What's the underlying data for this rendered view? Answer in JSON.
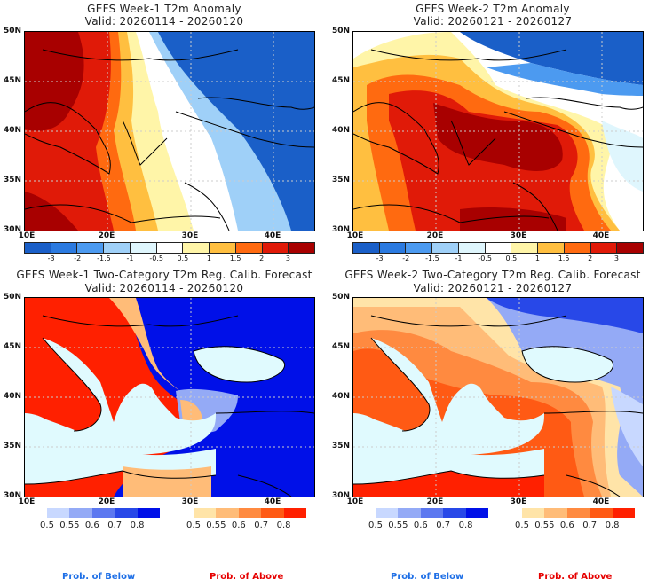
{
  "panels": [
    {
      "title": "GEFS Week-1 T2m Anomaly",
      "valid": "Valid: 20260114 - 20260120",
      "type": "anomaly"
    },
    {
      "title": "GEFS Week-2 T2m Anomaly",
      "valid": "Valid: 20260121 - 20260127",
      "type": "anomaly"
    },
    {
      "title": "GEFS Week-1 Two-Category T2m Reg. Calib. Forecast",
      "valid": "Valid: 20260114 - 20260120",
      "type": "probability"
    },
    {
      "title": "GEFS Week-2 Two-Category T2m Reg. Calib. Forecast",
      "valid": "Valid: 20260121 - 20260127",
      "type": "probability"
    }
  ],
  "axes": {
    "lat_labels": [
      "50N",
      "45N",
      "40N",
      "35N",
      "30N"
    ],
    "lon_labels": [
      "10E",
      "20E",
      "30E",
      "40E"
    ]
  },
  "anomaly_colorbar": {
    "colors": [
      "#1a5fc8",
      "#2b7ae0",
      "#4c9af0",
      "#9fd0f8",
      "#dff6fd",
      "#ffffff",
      "#fff5a8",
      "#ffbf40",
      "#ff6a10",
      "#e01a08",
      "#a80000"
    ],
    "labels": [
      "-3",
      "-2",
      "-1.5",
      "-1",
      "-0.5",
      "0.5",
      "1",
      "1.5",
      "2",
      "3"
    ]
  },
  "prob_below": {
    "colors": [
      "#c8d8ff",
      "#94aaf6",
      "#5c78f0",
      "#2848e8",
      "#0010e8"
    ],
    "labels": [
      "0.5",
      "0.55",
      "0.6",
      "0.7",
      "0.8"
    ],
    "caption": "Prob. of Below",
    "caption_color": "#1e6fe6"
  },
  "prob_above": {
    "colors": [
      "#ffe4a8",
      "#ffbc78",
      "#ff8a40",
      "#ff5a14",
      "#ff2000"
    ],
    "labels": [
      "0.5",
      "0.55",
      "0.6",
      "0.7",
      "0.8"
    ],
    "caption": "Prob. of Above",
    "caption_color": "#e60000"
  },
  "sea_color": "#e0fafe"
}
